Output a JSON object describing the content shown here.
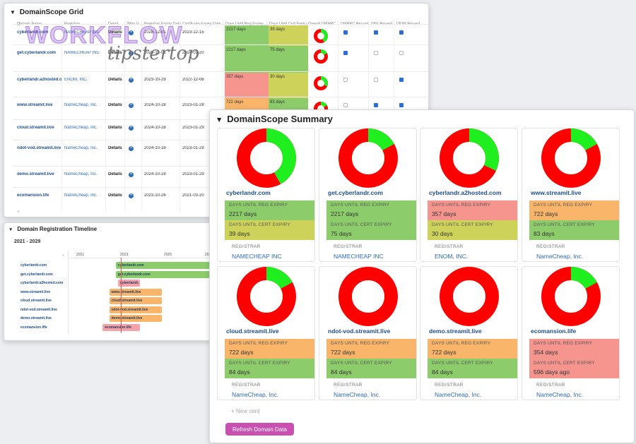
{
  "colors": {
    "green": "#8dcc6b",
    "yellow_green": "#cdd35a",
    "red": "#f6948e",
    "orange": "#f9b56a",
    "donut_red": "#ff0000",
    "donut_green": "#1fef1f",
    "bar_green": "#8dcc6b",
    "bar_orange": "#f9b56a",
    "bar_pink": "#f5a3a8",
    "button": "#c94fb0"
  },
  "watermark": {
    "line1": "WORKFLOW",
    "line2": "tipstertop"
  },
  "grid": {
    "title": "DomainScope Grid",
    "columns": [
      "Domain Name",
      "Registrar",
      "Detail",
      "Who Is",
      "Registrar Expiry Date",
      "Certificate Expiry Date",
      "Days Until Reg Expiry",
      "Days Until Cert Expiry",
      "Overall DMARC",
      "DMARC Record",
      "SPF Record",
      "DKIM Record"
    ],
    "add_label": "+",
    "rows": [
      {
        "domain": "cyberlandr.com",
        "registrar": "NAMECHEAP INC",
        "detail": "Details",
        "reg_date": "2028-12-01",
        "cert_date": "2023-12-15",
        "reg_days": "2217 days",
        "cert_days": "39 days",
        "reg_color": "green",
        "cert_color": "yellow_green",
        "green_frac": 0.42,
        "dmarc": true,
        "spf": true,
        "dkim": true
      },
      {
        "domain": "get.cyberlandr.com",
        "registrar": "NAMECHEAP INC",
        "detail": "Details",
        "reg_date": "2028-12-01",
        "cert_date": "2024-01-20",
        "reg_days": "2217 days",
        "cert_days": "75 days",
        "reg_color": "green",
        "cert_color": "green",
        "green_frac": 0.17,
        "dmarc": true,
        "spf": false,
        "dkim": false
      },
      {
        "domain": "cyberlandr.a2hosted.com",
        "registrar": "ENOM, INC.",
        "detail": "Details",
        "reg_date": "2023-10-29",
        "cert_date": "2022-12-06",
        "reg_days": "357 days",
        "cert_days": "30 days",
        "reg_color": "red",
        "cert_color": "yellow_green",
        "green_frac": 0.32,
        "dmarc": false,
        "spf": false,
        "dkim": true
      },
      {
        "domain": "www.streamit.live",
        "registrar": "NameCheap, Inc.",
        "detail": "Details",
        "reg_date": "2024-10-28",
        "cert_date": "2023-01-28",
        "reg_days": "722 days",
        "cert_days": "83 days",
        "reg_color": "orange",
        "cert_color": "green",
        "green_frac": 0.17,
        "dmarc": false,
        "spf": true,
        "dkim": true
      },
      {
        "domain": "cloud.streamit.live",
        "registrar": "NameCheap, Inc.",
        "detail": "Details",
        "reg_date": "2024-10-28",
        "cert_date": "2023-01-29"
      },
      {
        "domain": "ndot-vod.streamit.live",
        "registrar": "NameCheap, Inc.",
        "detail": "Details",
        "reg_date": "2024-10-28",
        "cert_date": "2023-01-29"
      },
      {
        "domain": "demo.streamit.live",
        "registrar": "NameCheap, Inc.",
        "detail": "Details",
        "reg_date": "2024-10-28",
        "cert_date": "2023-01-29"
      },
      {
        "domain": "ecomansion.life",
        "registrar": "NameCheap, Inc.",
        "detail": "Details",
        "reg_date": "2023-10-26",
        "cert_date": "2021-03-20"
      }
    ]
  },
  "timeline": {
    "title": "Domain Registration Timeline",
    "range": "2021 - 2029",
    "years": [
      "2021",
      "2023",
      "2025",
      "202"
    ],
    "rows": [
      {
        "name": "cyberlandr.com",
        "bar": "cyberlandr.com",
        "color": "bar_green",
        "start_year": 2022.8,
        "end_year": 2028.9
      },
      {
        "name": "get.cyberlandr.com",
        "bar": "get.cyberlandr.com",
        "color": "bar_green",
        "start_year": 2022.8,
        "end_year": 2028.9
      },
      {
        "name": "cyberlandr.a2hosted.com",
        "bar": "cyberlandr.",
        "color": "bar_pink",
        "start_year": 2022.9,
        "end_year": 2023.9
      },
      {
        "name": "www.streamit.live",
        "bar": "www.streamit.live",
        "color": "bar_orange",
        "start_year": 2022.5,
        "end_year": 2024.9
      },
      {
        "name": "cloud.streamit.live",
        "bar": "cloud.streamit.live",
        "color": "bar_orange",
        "start_year": 2022.5,
        "end_year": 2024.9
      },
      {
        "name": "ndot-vod.streamit.live",
        "bar": "ndot-vod.streamit.live",
        "color": "bar_orange",
        "start_year": 2022.5,
        "end_year": 2024.9
      },
      {
        "name": "demo.streamit.live",
        "bar": "demo.streamit.live",
        "color": "bar_orange",
        "start_year": 2022.5,
        "end_year": 2024.9
      },
      {
        "name": "ecomansion.life",
        "bar": "ecomansion.life",
        "color": "bar_pink",
        "start_year": 2022.2,
        "end_year": 2023.9
      }
    ]
  },
  "summary": {
    "title": "DomainScope Summary",
    "reg_label": "DAYS UNTIL REG EXPIRY",
    "cert_label": "DAYS UNTIL CERT EXPIRY",
    "registrar_label": "REGISTRAR",
    "new_card": "+   New card",
    "refresh_label": "Refresh Domain Data",
    "cards": [
      {
        "domain": "cyberlandr.com",
        "reg_days": "2217 days",
        "cert_days": "39 days",
        "registrar": "NAMECHEAP INC",
        "reg_color": "green",
        "cert_color": "yellow_green",
        "green_frac": 0.42
      },
      {
        "domain": "get.cyberlandr.com",
        "reg_days": "2217 days",
        "cert_days": "75 days",
        "registrar": "NAMECHEAP INC",
        "reg_color": "green",
        "cert_color": "green",
        "green_frac": 0.17
      },
      {
        "domain": "cyberlandr.a2hosted.com",
        "reg_days": "357 days",
        "cert_days": "30 days",
        "registrar": "ENOM, INC.",
        "reg_color": "red",
        "cert_color": "yellow_green",
        "green_frac": 0.32
      },
      {
        "domain": "www.streamit.live",
        "reg_days": "722 days",
        "cert_days": "83 days",
        "registrar": "NameCheap, Inc.",
        "reg_color": "orange",
        "cert_color": "green",
        "green_frac": 0.17
      },
      {
        "domain": "cloud.streamit.live",
        "reg_days": "722 days",
        "cert_days": "84 days",
        "registrar": "NameCheap, Inc.",
        "reg_color": "orange",
        "cert_color": "green",
        "green_frac": 0.17
      },
      {
        "domain": "ndot-vod.streamit.live",
        "reg_days": "722 days",
        "cert_days": "84 days",
        "registrar": "NameCheap, Inc.",
        "reg_color": "orange",
        "cert_color": "green",
        "green_frac": 0.0
      },
      {
        "domain": "demo.streamit.live",
        "reg_days": "722 days",
        "cert_days": "84 days",
        "registrar": "NameCheap, Inc.",
        "reg_color": "orange",
        "cert_color": "green",
        "green_frac": 0.0
      },
      {
        "domain": "ecomansion.life",
        "reg_days": "354 days",
        "cert_days": "596 days ago",
        "registrar": "NameCheap, Inc.",
        "reg_color": "red",
        "cert_color": "red",
        "green_frac": 0.17
      }
    ]
  }
}
